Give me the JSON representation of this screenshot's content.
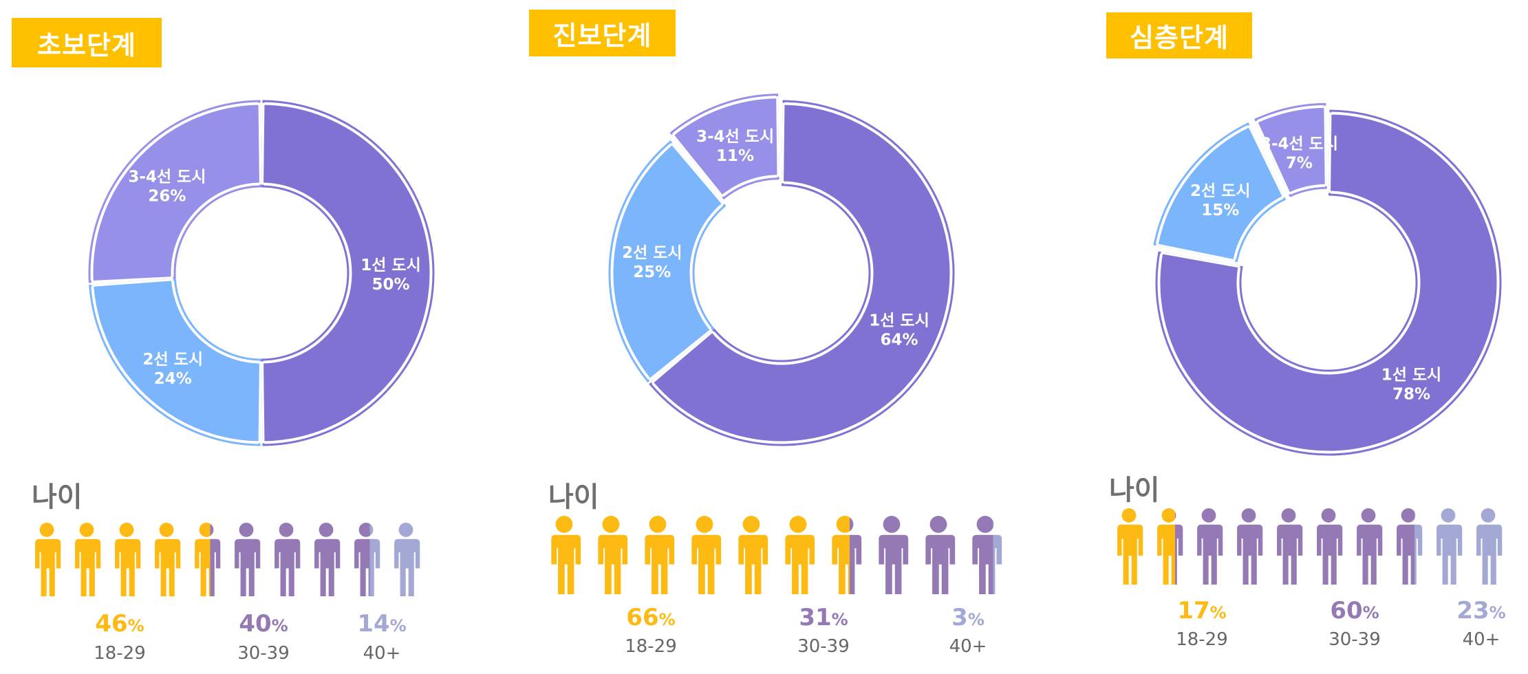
{
  "colors": {
    "tier1": "#7F72D3",
    "tier2": "#7BB5FB",
    "tier34": "#9790E8",
    "title_bg": "#FFC000",
    "age_young": "#FDBA12",
    "age_mid": "#9479B5",
    "age_old": "#A3A8D4"
  },
  "age_label": "나이",
  "chart_data": [
    {
      "type": "pie",
      "variant": "donut",
      "title": "초보단계",
      "slices": [
        {
          "label": "1선 도시",
          "value": 50,
          "text": "50%"
        },
        {
          "label": "2선 도시",
          "value": 24,
          "text": "24%"
        },
        {
          "label": "3-4선 도시",
          "value": 26,
          "text": "26%"
        }
      ],
      "age": {
        "title": "나이",
        "groups": [
          {
            "range": "18-29",
            "value": 46,
            "text": "46"
          },
          {
            "range": "30-39",
            "value": 40,
            "text": "40"
          },
          {
            "range": "40+",
            "value": 14,
            "text": "14"
          }
        ]
      }
    },
    {
      "type": "pie",
      "variant": "donut",
      "title": "진보단계",
      "slices": [
        {
          "label": "1선 도시",
          "value": 64,
          "text": "64%"
        },
        {
          "label": "2선 도시",
          "value": 25,
          "text": "25%"
        },
        {
          "label": "3-4선 도시",
          "value": 11,
          "text": "11%",
          "exploded": true
        }
      ],
      "age": {
        "title": "나이",
        "groups": [
          {
            "range": "18-29",
            "value": 66,
            "text": "66"
          },
          {
            "range": "30-39",
            "value": 31,
            "text": "31"
          },
          {
            "range": "40+",
            "value": 3,
            "text": "3"
          }
        ]
      }
    },
    {
      "type": "pie",
      "variant": "donut",
      "title": "심층단계",
      "slices": [
        {
          "label": "1선 도시",
          "value": 78,
          "text": "78%"
        },
        {
          "label": "2선 도시",
          "value": 15,
          "text": "15%",
          "exploded": true
        },
        {
          "label": "3-4선 도시",
          "value": 7,
          "text": "7%",
          "exploded": true
        }
      ],
      "age": {
        "title": "나이",
        "groups": [
          {
            "range": "18-29",
            "value": 17,
            "text": "17"
          },
          {
            "range": "30-39",
            "value": 60,
            "text": "60"
          },
          {
            "range": "40+",
            "value": 23,
            "text": "23"
          }
        ]
      }
    }
  ],
  "percent_sign": "%"
}
